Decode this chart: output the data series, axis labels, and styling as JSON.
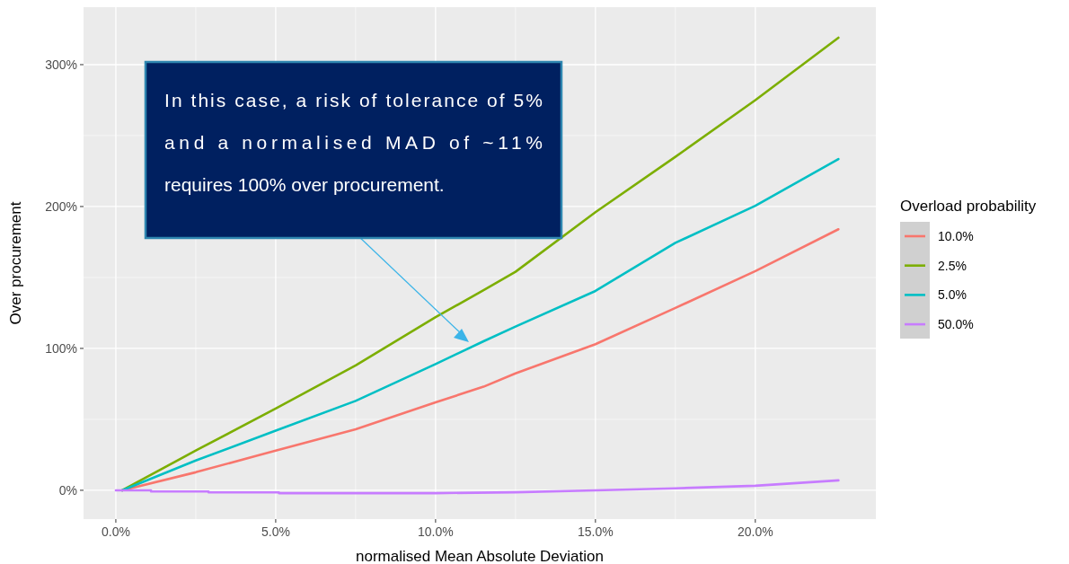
{
  "chart_data": {
    "type": "line",
    "xlabel": "normalised Mean Absolute Deviation",
    "ylabel": "Over procurement",
    "legend_title": "Overload probability",
    "legend": "right",
    "grid": true,
    "line_style": "solid",
    "marker": "none",
    "xlim": [
      -1.01,
      23.77
    ],
    "ylim": [
      -20.3,
      340.5
    ],
    "xticks": [
      {
        "value": 0,
        "label": "0.0%"
      },
      {
        "value": 5,
        "label": "5.0%"
      },
      {
        "value": 10,
        "label": "10.0%"
      },
      {
        "value": 15,
        "label": "15.0%"
      },
      {
        "value": 20,
        "label": "20.0%"
      }
    ],
    "yticks": [
      {
        "value": 0,
        "label": "0%"
      },
      {
        "value": 100,
        "label": "100%"
      },
      {
        "value": 200,
        "label": "200%"
      },
      {
        "value": 300,
        "label": "300%"
      }
    ],
    "series": [
      {
        "name": "10.0%",
        "color": "#f8766d",
        "x": [
          0.2,
          2.5,
          5,
          7.5,
          10,
          11.5,
          12.5,
          15,
          17.5,
          20,
          22.6
        ],
        "values": [
          0,
          12.7,
          28,
          43,
          62,
          73,
          82.4,
          103,
          128.5,
          154.5,
          184
        ]
      },
      {
        "name": "2.5%",
        "color": "#7cae00",
        "x": [
          0.2,
          2.5,
          5,
          7.5,
          10,
          11.5,
          12.5,
          15,
          17.5,
          20,
          22.6
        ],
        "values": [
          0,
          28,
          57.6,
          88,
          122,
          141,
          154,
          196,
          235,
          275,
          319
        ]
      },
      {
        "name": "5.0%",
        "color": "#00bfc4",
        "x": [
          0.2,
          2.5,
          5,
          7.5,
          10,
          11.5,
          12.5,
          15,
          17.5,
          20,
          22.6
        ],
        "values": [
          0,
          21,
          42,
          63,
          89,
          105,
          115.4,
          140.5,
          174.4,
          200.5,
          233.5
        ]
      },
      {
        "name": "50.0%",
        "color": "#c77cff",
        "x": [
          0,
          1.1,
          1.1,
          2.9,
          2.9,
          5.1,
          5.1,
          10,
          12.5,
          15,
          17.5,
          20,
          22.6
        ],
        "values": [
          0,
          0,
          -0.8,
          -0.8,
          -1.5,
          -1.5,
          -2,
          -2,
          -1.4,
          0,
          1.4,
          3.2,
          7
        ]
      }
    ],
    "annotations": [
      "In this case, a risk of tolerance of 5% and a normalised MAD of ~11% requires 100% over procurement."
    ]
  }
}
